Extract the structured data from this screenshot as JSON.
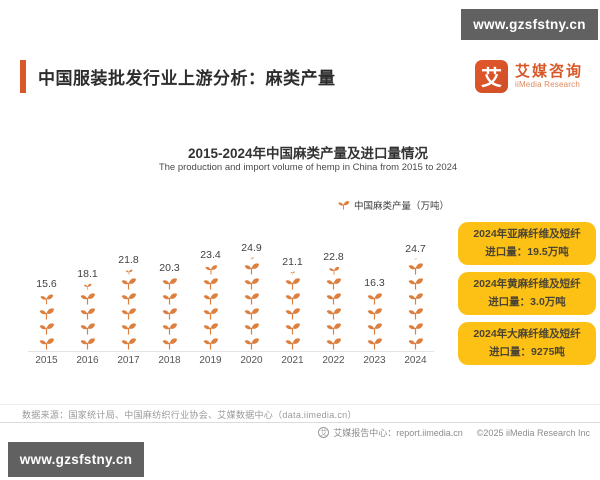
{
  "watermark": {
    "text": "www.gzsfstny.cn"
  },
  "header": {
    "title": "中国服装批发行业上游分析：麻类产量"
  },
  "logo": {
    "glyph": "艾",
    "name_cn": "艾媒咨询",
    "name_en": "iiMedia Research"
  },
  "chart_data": {
    "type": "bar",
    "variant": "pictogram-sprout-stack",
    "title": "2015-2024年中国麻类产量及进口量情况",
    "subtitle": "The production and import volume of hemp in China from 2015 to 2024",
    "legend": "中国麻类产量（万吨）",
    "categories": [
      "2015",
      "2016",
      "2017",
      "2018",
      "2019",
      "2020",
      "2021",
      "2022",
      "2023",
      "2024"
    ],
    "values": [
      15.6,
      18.1,
      21.8,
      20.3,
      23.4,
      24.9,
      21.1,
      22.8,
      16.3,
      24.7
    ],
    "ylabel": "中国麻类产量（万吨）",
    "unit_per_icon": 4,
    "grid": false,
    "legend_position": "top-right"
  },
  "callouts": [
    {
      "line1": "2024年亚麻纤维及短纤",
      "line2": "进口量：19.5万吨"
    },
    {
      "line1": "2024年黄麻纤维及短纤",
      "line2": "进口量：3.0万吨"
    },
    {
      "line1": "2024年大麻纤维及短纤",
      "line2": "进口量：9275吨"
    }
  ],
  "footer": {
    "source": "数据来源：国家统计局、中国麻纺织行业协会、艾媒数据中心（data.iimedia.cn）",
    "report_center": "艾媒报告中心：report.iimedia.cn",
    "copyright": "©2025 iiMedia Research Inc"
  },
  "colors": {
    "accent_orange": "#D8582A",
    "sprout_orange": "#DC7F3F",
    "callout_yellow": "#FCC114",
    "watermark_gray": "#616161"
  }
}
